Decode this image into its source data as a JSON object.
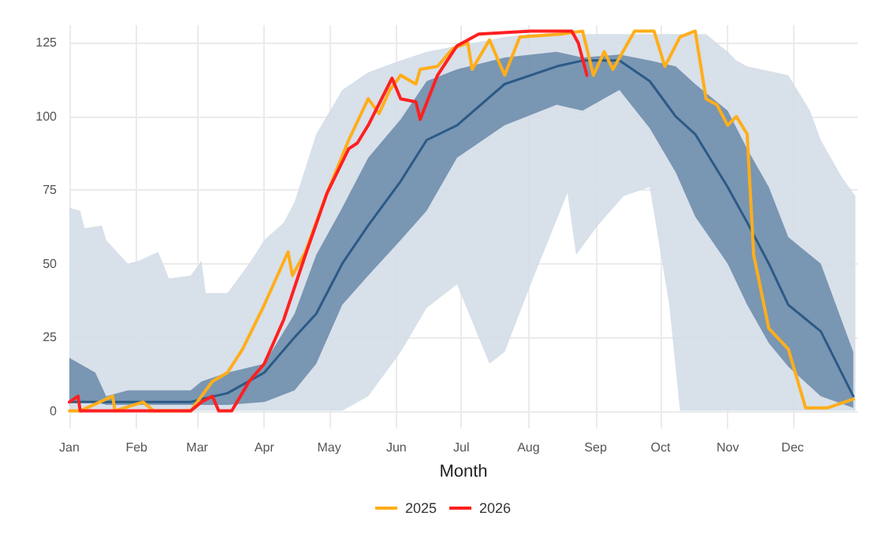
{
  "chart_data": {
    "type": "line",
    "xlabel": "Month",
    "xlim": [
      "--01-01",
      "--12-31"
    ],
    "ylim": [
      -6,
      131
    ],
    "yticks": [
      0,
      25,
      50,
      75,
      100,
      125
    ],
    "xticks": [
      {
        "value": "--01-01",
        "label": "Jan"
      },
      {
        "value": "--02-01",
        "label": "Feb"
      },
      {
        "value": "--03-01",
        "label": "Mar"
      },
      {
        "value": "--04-01",
        "label": "Apr"
      },
      {
        "value": "--05-01",
        "label": "May"
      },
      {
        "value": "--06-01",
        "label": "Jun"
      },
      {
        "value": "--07-01",
        "label": "Jul"
      },
      {
        "value": "--08-01",
        "label": "Aug"
      },
      {
        "value": "--09-01",
        "label": "Sep"
      },
      {
        "value": "--10-01",
        "label": "Oct"
      },
      {
        "value": "--11-01",
        "label": "Nov"
      },
      {
        "value": "--12-01",
        "label": "Dec"
      }
    ],
    "grid": true,
    "legend": "bottom",
    "marker": "none",
    "line_style": "solid",
    "series": [
      {
        "color": "#d4dde8",
        "x": [
          "--01-01",
          "--01-06",
          "--01-08",
          "--01-16",
          "--01-18",
          "--01-28",
          "--02-02",
          "--02-11",
          "--02-16",
          "--02-26",
          "--03-03",
          "--03-05",
          "--03-15",
          "--03-25",
          "--04-01",
          "--04-10",
          "--04-15",
          "--04-25",
          "--05-07",
          "--05-19",
          "--06-03",
          "--06-15",
          "--06-29",
          "--07-14",
          "--07-21",
          "--08-02",
          "--08-19",
          "--08-23",
          "--09-02",
          "--09-14",
          "--09-26",
          "--10-05",
          "--10-10",
          "--10-22",
          "--11-01",
          "--11-05",
          "--11-10",
          "--11-29",
          "--12-09",
          "--12-14",
          "--12-24",
          "--12-30"
        ],
        "values": [
          null,
          null,
          null,
          null,
          null,
          null,
          null,
          null,
          null,
          null,
          null,
          null,
          null,
          null,
          null,
          null,
          null,
          null,
          null,
          null,
          null,
          null,
          null,
          null,
          null,
          null,
          null,
          null,
          null,
          null,
          null,
          null,
          null,
          null,
          null,
          null,
          null,
          null,
          null,
          null,
          null,
          null
        ],
        "upper": [
          69,
          68,
          62,
          63,
          58,
          50,
          51,
          54,
          45,
          46,
          51,
          40,
          40,
          50,
          58,
          64,
          71,
          94,
          109,
          115,
          119,
          122,
          124,
          126,
          127,
          128,
          128,
          128,
          128,
          128,
          128,
          128,
          128,
          128,
          122,
          119,
          117,
          114,
          102,
          92,
          79,
          73
        ],
        "lower": [
          0,
          0,
          0,
          0,
          0,
          0,
          0,
          0,
          0,
          0,
          0,
          0,
          0,
          0,
          0,
          0,
          0,
          0,
          0,
          5,
          20,
          35,
          43,
          16,
          20,
          43,
          74,
          53,
          63,
          73,
          76,
          36,
          0,
          0,
          0,
          0,
          0,
          0,
          0,
          0,
          0,
          0
        ]
      },
      {
        "color": "#2c5a85",
        "x": [
          "--01-01",
          "--01-13",
          "--01-18",
          "--01-28",
          "--02-11",
          "--02-26",
          "--03-03",
          "--03-15",
          "--04-01",
          "--04-15",
          "--04-25",
          "--05-07",
          "--05-19",
          "--06-03",
          "--06-15",
          "--06-29",
          "--07-21",
          "--08-14",
          "--08-26",
          "--09-12",
          "--09-26",
          "--10-08",
          "--10-17",
          "--11-01",
          "--11-10",
          "--11-20",
          "--11-29",
          "--12-14",
          "--12-29"
        ],
        "values": [
          3,
          3,
          3,
          3,
          3,
          3,
          4,
          6,
          13,
          25,
          33,
          50,
          63,
          78,
          92,
          97,
          111,
          117,
          119,
          119,
          112,
          100,
          94,
          76,
          64,
          50,
          36,
          27,
          5
        ],
        "upper": [
          18,
          13,
          5,
          7,
          7,
          7,
          10,
          13,
          16,
          33,
          53,
          69,
          86,
          99,
          112,
          116,
          120,
          122,
          120,
          121,
          119,
          117,
          111,
          102,
          89,
          76,
          59,
          50,
          20
        ],
        "lower": [
          3,
          3,
          2,
          2,
          2,
          2,
          2,
          2,
          3,
          7,
          16,
          36,
          46,
          58,
          68,
          86,
          97,
          104,
          102,
          109,
          96,
          81,
          66,
          50,
          36,
          23,
          15,
          5,
          1
        ]
      },
      {
        "name": "2025",
        "color": "#ffae1a",
        "x": [
          "--01-01",
          "--01-06",
          "--01-21",
          "--01-22",
          "--02-04",
          "--02-09",
          "--02-26",
          "--03-08",
          "--03-15",
          "--03-22",
          "--04-01",
          "--04-12",
          "--04-14",
          "--04-20",
          "--04-30",
          "--05-10",
          "--05-19",
          "--05-24",
          "--05-29",
          "--06-03",
          "--06-10",
          "--06-12",
          "--06-20",
          "--06-27",
          "--07-04",
          "--07-06",
          "--07-14",
          "--07-21",
          "--07-28",
          "--08-16",
          "--08-26",
          "--08-31",
          "--09-05",
          "--09-09",
          "--09-19",
          "--09-28",
          "--10-03",
          "--10-10",
          "--10-17",
          "--10-22",
          "--10-27",
          "--11-01",
          "--11-05",
          "--11-10",
          "--11-13",
          "--11-20",
          "--11-29",
          "--12-07",
          "--12-17",
          "--12-29"
        ],
        "values": [
          0,
          0,
          5,
          0,
          3,
          0,
          0,
          10,
          13,
          21,
          36,
          54,
          46,
          54,
          74,
          92,
          106,
          101,
          109,
          114,
          111,
          116,
          117,
          123,
          125,
          116,
          126,
          114,
          127,
          128,
          129,
          114,
          122,
          116,
          129,
          129,
          117,
          127,
          129,
          106,
          104,
          97,
          100,
          94,
          53,
          28,
          21,
          1,
          1,
          4
        ]
      },
      {
        "name": "2026",
        "color": "#ff2020",
        "x": [
          "--01-01",
          "--01-05",
          "--01-06",
          "--02-26",
          "--03-03",
          "--03-08",
          "--03-11",
          "--03-17",
          "--03-25",
          "--04-01",
          "--04-10",
          "--04-20",
          "--04-30",
          "--05-10",
          "--05-14",
          "--05-19",
          "--05-30",
          "--06-03",
          "--06-10",
          "--06-12",
          "--06-20",
          "--06-29",
          "--07-09",
          "--08-02",
          "--08-21",
          "--08-24",
          "--08-28"
        ],
        "values": [
          3,
          5,
          0,
          0,
          3,
          5,
          0,
          0,
          10,
          16,
          31,
          53,
          74,
          89,
          91,
          97,
          113,
          106,
          105,
          99,
          114,
          124,
          128,
          129,
          129,
          125,
          114
        ]
      }
    ]
  }
}
